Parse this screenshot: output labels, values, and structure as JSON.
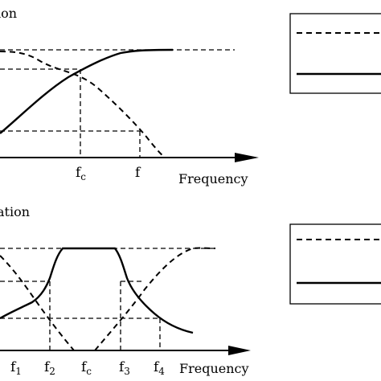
{
  "top_panel": {
    "title_fragment": "ion",
    "x_axis_label": "Frequency",
    "tick_labels": [
      {
        "id": "fc",
        "base": "f",
        "sub": "c"
      },
      {
        "id": "f",
        "base": "f",
        "sub": ""
      }
    ]
  },
  "bottom_panel": {
    "title_fragment": "ation",
    "x_axis_label": "Frequency",
    "tick_labels": [
      {
        "id": "f1",
        "base": "f",
        "sub": "1"
      },
      {
        "id": "f2",
        "base": "f",
        "sub": "2"
      },
      {
        "id": "fc",
        "base": "f",
        "sub": "c"
      },
      {
        "id": "f3",
        "base": "f",
        "sub": "3"
      },
      {
        "id": "f4",
        "base": "f",
        "sub": "4"
      }
    ]
  },
  "legends": [
    {
      "id": "top-legend",
      "entries": [
        {
          "style": "dashed"
        },
        {
          "style": "solid"
        }
      ]
    },
    {
      "id": "bottom-legend",
      "entries": [
        {
          "style": "dashed"
        },
        {
          "style": "solid"
        }
      ]
    }
  ],
  "colors": {
    "ink": "#000000",
    "background": "#ffffff"
  }
}
